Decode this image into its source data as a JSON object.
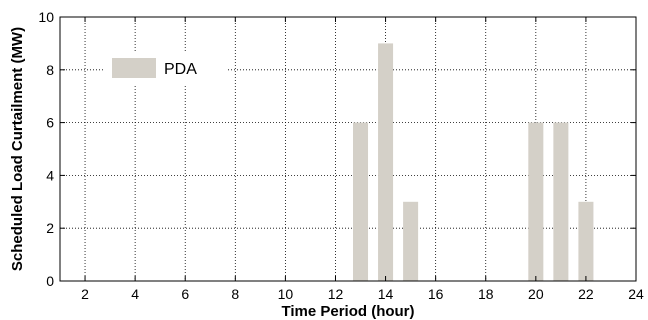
{
  "chart_data": {
    "type": "bar",
    "xlabel": "Time Period (hour)",
    "ylabel": "Scheduled Load Curtailment (MW)",
    "xlim": [
      1,
      24
    ],
    "ylim": [
      0,
      10
    ],
    "x_ticks": [
      2,
      4,
      6,
      8,
      10,
      12,
      14,
      16,
      18,
      20,
      22,
      24
    ],
    "y_ticks": [
      0,
      2,
      4,
      6,
      8,
      10
    ],
    "grid": true,
    "legend_position": "top-left",
    "series": [
      {
        "name": "PDA",
        "color": "#d4d0c8",
        "x": [
          13,
          14,
          15,
          20,
          21,
          22
        ],
        "values": [
          6,
          9,
          3,
          6,
          6,
          3
        ]
      }
    ]
  }
}
